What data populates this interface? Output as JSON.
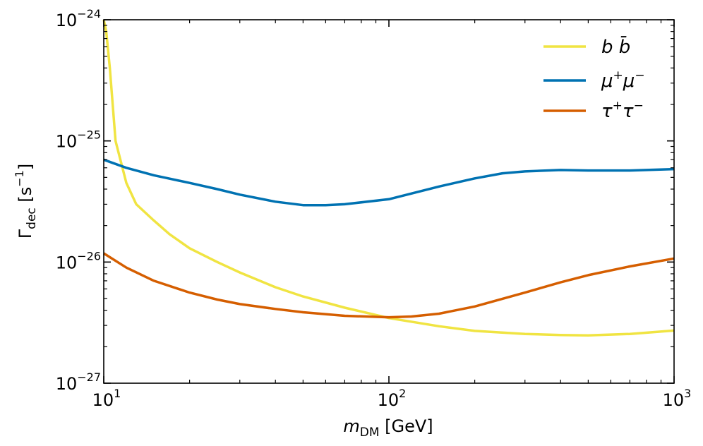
{
  "chart_data": {
    "type": "line",
    "x_scale": "log",
    "y_scale": "log",
    "xlim": [
      10,
      1000
    ],
    "ylim": [
      1e-27,
      1e-24
    ],
    "grid": false,
    "legend_position": "top-right",
    "xlabel": {
      "main": "m",
      "sub": "DM",
      "unit": " [GeV]"
    },
    "ylabel": {
      "main": "Γ",
      "sub": "dec",
      "unit_pre": " [s",
      "unit_exp": "−1",
      "unit_post": "]"
    },
    "x_ticks": [
      {
        "value": 10,
        "base": "10",
        "exp": "1"
      },
      {
        "value": 100,
        "base": "10",
        "exp": "2"
      },
      {
        "value": 1000,
        "base": "10",
        "exp": "3"
      }
    ],
    "y_ticks": [
      {
        "value": 1e-24,
        "base": "10",
        "exp": "−24"
      },
      {
        "value": 1e-25,
        "base": "10",
        "exp": "−25"
      },
      {
        "value": 1e-26,
        "base": "10",
        "exp": "−26"
      },
      {
        "value": 1e-27,
        "base": "10",
        "exp": "−27"
      }
    ],
    "series": [
      {
        "name": "b b̄",
        "legend": {
          "a": "b",
          "b": "b̄"
        },
        "color": "#f0e442",
        "x": [
          10,
          10.2,
          10.5,
          11,
          12,
          13,
          15,
          17,
          20,
          25,
          30,
          40,
          50,
          70,
          100,
          150,
          200,
          300,
          400,
          500,
          700,
          1000
        ],
        "y": [
          1e-24,
          8e-25,
          4e-25,
          1e-25,
          4.5e-26,
          3e-26,
          2.2e-26,
          1.7e-26,
          1.3e-26,
          1e-26,
          8.2e-27,
          6.2e-27,
          5.2e-27,
          4.2e-27,
          3.45e-27,
          2.95e-27,
          2.7e-27,
          2.55e-27,
          2.5e-27,
          2.48e-27,
          2.55e-27,
          2.72e-27
        ]
      },
      {
        "name": "μ⁺μ⁻",
        "legend": {
          "a": "μ",
          "a_sup": "+",
          "b": "μ",
          "b_sup": "−"
        },
        "color": "#0072b2",
        "x": [
          10,
          12,
          15,
          20,
          25,
          30,
          40,
          50,
          60,
          70,
          100,
          150,
          200,
          250,
          300,
          400,
          500,
          700,
          1000
        ],
        "y": [
          7e-26,
          6e-26,
          5.2e-26,
          4.5e-26,
          4e-26,
          3.6e-26,
          3.15e-26,
          2.95e-26,
          2.95e-26,
          3e-26,
          3.3e-26,
          4.2e-26,
          4.9e-26,
          5.4e-26,
          5.6e-26,
          5.75e-26,
          5.7e-26,
          5.7e-26,
          5.85e-26
        ]
      },
      {
        "name": "τ⁺τ⁻",
        "legend": {
          "a": "τ",
          "a_sup": "+",
          "b": "τ",
          "b_sup": "−"
        },
        "color": "#d55e00",
        "x": [
          10,
          12,
          15,
          20,
          25,
          30,
          40,
          50,
          70,
          100,
          120,
          150,
          200,
          300,
          400,
          500,
          700,
          1000
        ],
        "y": [
          1.18e-26,
          9e-27,
          7e-27,
          5.6e-27,
          4.9e-27,
          4.5e-27,
          4.1e-27,
          3.85e-27,
          3.6e-27,
          3.5e-27,
          3.55e-27,
          3.75e-27,
          4.3e-27,
          5.6e-27,
          6.8e-27,
          7.8e-27,
          9.2e-27,
          1.07e-26
        ]
      }
    ]
  }
}
